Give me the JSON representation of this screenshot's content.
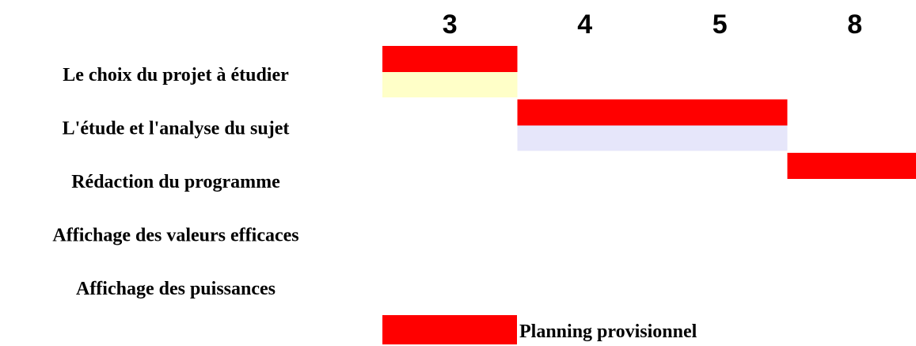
{
  "chart_data": {
    "type": "gantt",
    "columns": [
      "3",
      "4",
      "5",
      "8"
    ],
    "tasks": [
      {
        "label": "Le choix du projet à étudier",
        "planned": {
          "start": 0,
          "end": 1
        },
        "actual": {
          "start": 0,
          "end": 1,
          "color": "#FFFFC8"
        }
      },
      {
        "label": "L'étude et l'analyse du sujet",
        "planned": {
          "start": 1,
          "end": 3
        },
        "actual": {
          "start": 1,
          "end": 3,
          "color": "#E6E6FA"
        }
      },
      {
        "label": "Rédaction du programme",
        "planned": {
          "start": 3,
          "end": 4
        },
        "actual": null
      },
      {
        "label": "Affichage des valeurs efficaces",
        "planned": null,
        "actual": null
      },
      {
        "label": "Affichage des puissances",
        "planned": null,
        "actual": null
      }
    ],
    "legend": {
      "label": "Planning provisionnel",
      "color": "#FF0000"
    },
    "colors": {
      "planned": "#FF0000"
    }
  }
}
